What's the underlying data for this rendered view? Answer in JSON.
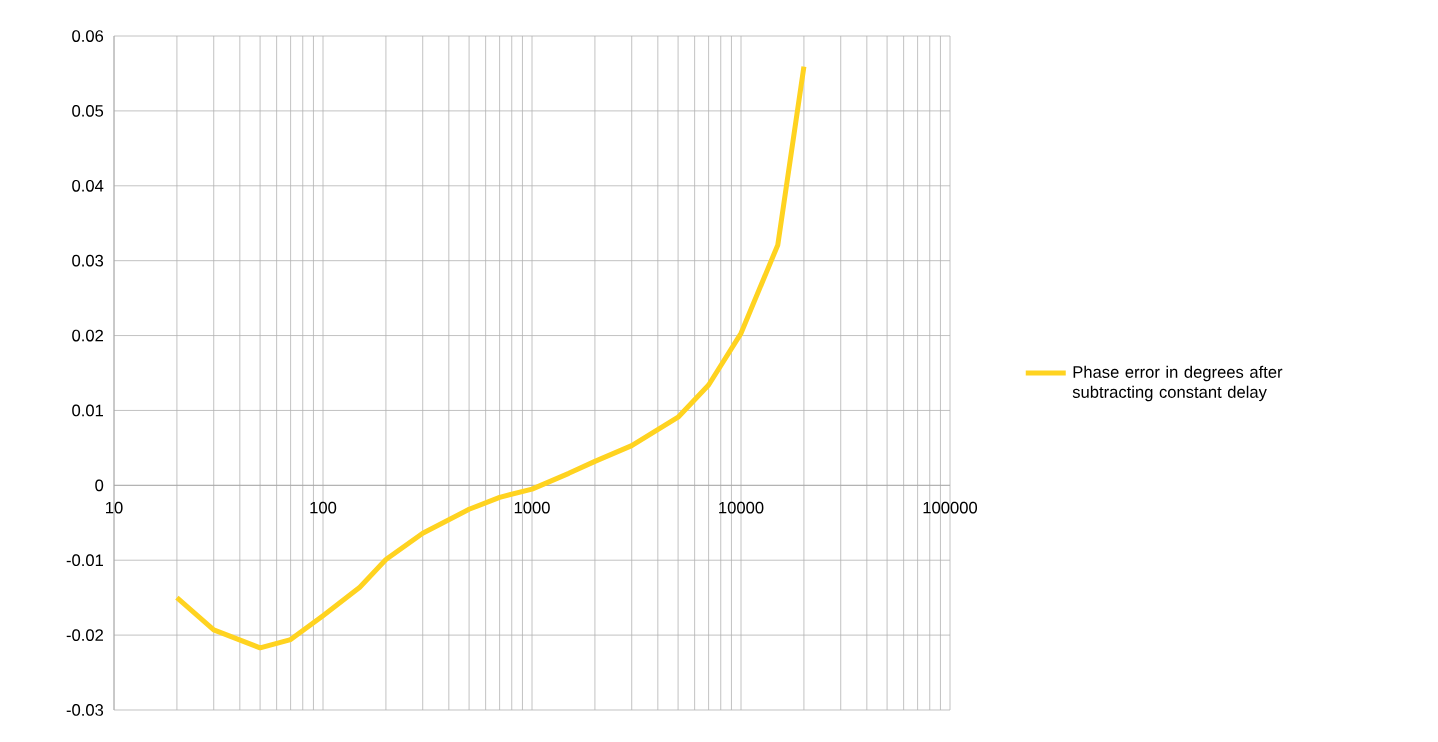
{
  "chart_data": {
    "type": "line",
    "log": "x",
    "x": [
      20,
      30,
      50,
      70,
      100,
      150,
      200,
      300,
      500,
      700,
      1000,
      1500,
      2000,
      3000,
      5000,
      7000,
      10000,
      15000,
      20000
    ],
    "series": [
      {
        "name": "Phase error in degrees after subtracting constant delay",
        "color": "#ffd320",
        "values": [
          -0.015,
          -0.0193,
          -0.0217,
          -0.0206,
          -0.0174,
          -0.0136,
          -0.0099,
          -0.0064,
          -0.0032,
          -0.0016,
          -0.0005,
          0.0016,
          0.0032,
          0.0053,
          0.0091,
          0.0134,
          0.0203,
          0.0321,
          0.0559
        ]
      }
    ],
    "xlim": [
      10,
      100000
    ],
    "xticks": [
      10,
      100,
      1000,
      10000,
      100000
    ],
    "ylim": [
      -0.03,
      0.06
    ],
    "yticks": [
      -0.03,
      -0.02,
      -0.01,
      0,
      0.01,
      0.02,
      0.03,
      0.04,
      0.05,
      0.06
    ],
    "grid": true,
    "legend": "right"
  }
}
